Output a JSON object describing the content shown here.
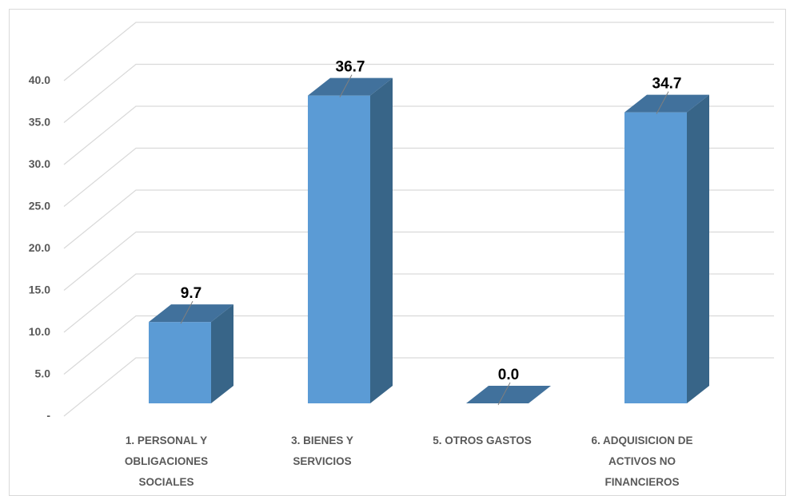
{
  "chart_data": {
    "type": "bar",
    "categories": [
      [
        "1. PERSONAL Y",
        "OBLIGACIONES",
        "SOCIALES"
      ],
      [
        "3. BIENES Y",
        "SERVICIOS"
      ],
      [
        "5. OTROS GASTOS"
      ],
      [
        "6. ADQUISICION DE",
        "ACTIVOS NO",
        "FINANCIEROS"
      ]
    ],
    "values": [
      9.7,
      36.7,
      0.0,
      34.7
    ],
    "data_labels": [
      "9.7",
      "36.7",
      "0.0",
      "34.7"
    ],
    "ytick_values": [
      0,
      5,
      10,
      15,
      20,
      25,
      30,
      35,
      40
    ],
    "ytick_labels": [
      "-",
      "5.0",
      "10.0",
      "15.0",
      "20.0",
      "25.0",
      "30.0",
      "35.0",
      "40.0"
    ],
    "ylim": [
      0,
      40
    ],
    "grid": true,
    "legend": false,
    "style": "3d-column",
    "colors": {
      "front": "#5b9bd5",
      "side": "#386588",
      "top": "#41719c",
      "grid": "#d9d9d9",
      "text": "#595959"
    }
  }
}
